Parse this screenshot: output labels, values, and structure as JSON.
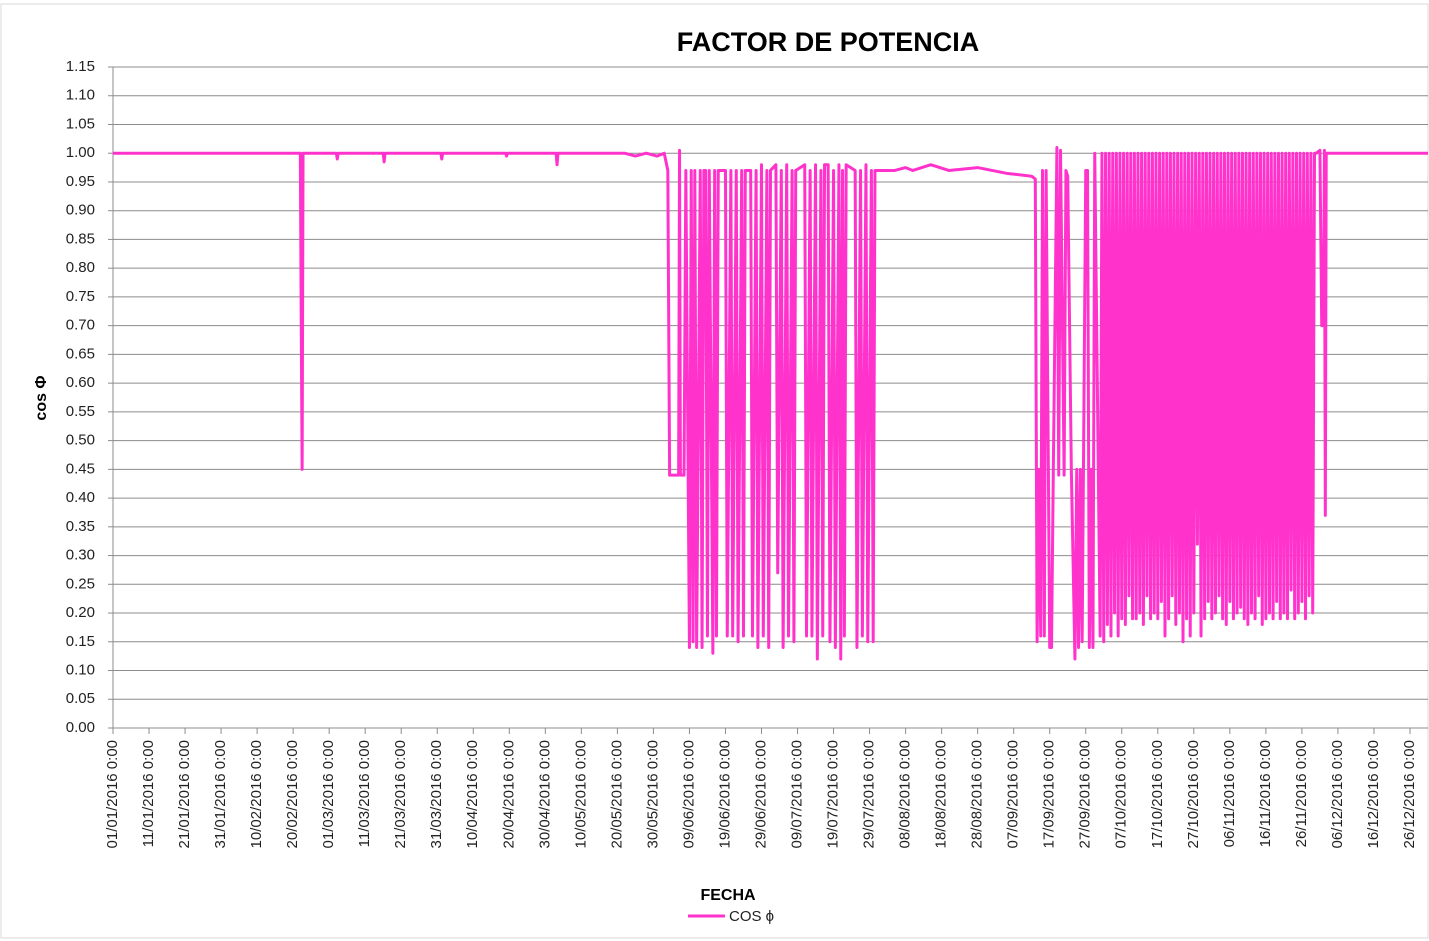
{
  "chart_data": {
    "type": "line",
    "title": "FACTOR DE POTENCIA",
    "xlabel": "FECHA",
    "ylabel": "cos Φ",
    "x": [
      "01/01/2016 0:00",
      "22/02/2016 0:00",
      "22/02/2016 6:00",
      "22/02/2016 12:00",
      "22/02/2016 18:00",
      "03/03/2016 0:00",
      "03/03/2016 6:00",
      "03/03/2016 12:00",
      "16/03/2016 0:00",
      "16/03/2016 6:00",
      "16/03/2016 12:00",
      "01/04/2016 0:00",
      "01/04/2016 6:00",
      "01/04/2016 12:00",
      "19/04/2016 0:00",
      "19/04/2016 6:00",
      "19/04/2016 12:00",
      "03/05/2016 0:00",
      "03/05/2016 6:00",
      "03/05/2016 12:00",
      "22/05/2016 0:00",
      "25/05/2016 0:00",
      "28/05/2016 0:00",
      "31/05/2016 0:00",
      "02/06/2016 0:00",
      "03/06/2016 0:00",
      "03/06/2016 12:00",
      "06/06/2016 0:00",
      "06/06/2016 6:00",
      "06/06/2016 12:00",
      "07/06/2016 12:00",
      "08/06/2016 0:00",
      "09/06/2016 0:00",
      "09/06/2016 12:00",
      "10/06/2016 0:00",
      "10/06/2016 12:00",
      "11/06/2016 0:00",
      "12/06/2016 0:00",
      "12/06/2016 12:00",
      "13/06/2016 0:00",
      "13/06/2016 12:00",
      "14/06/2016 0:00",
      "14/06/2016 12:00",
      "15/06/2016 12:00",
      "16/06/2016 0:00",
      "16/06/2016 12:00",
      "17/06/2016 0:00",
      "19/06/2016 0:00",
      "19/06/2016 12:00",
      "20/06/2016 12:00",
      "21/06/2016 0:00",
      "22/06/2016 0:00",
      "22/06/2016 12:00",
      "23/06/2016 12:00",
      "24/06/2016 0:00",
      "24/06/2016 12:00",
      "26/06/2016 0:00",
      "26/06/2016 12:00",
      "27/06/2016 12:00",
      "28/06/2016 0:00",
      "29/06/2016 0:00",
      "29/06/2016 12:00",
      "30/06/2016 12:00",
      "01/07/2016 0:00",
      "01/07/2016 12:00",
      "03/07/2016 0:00",
      "03/07/2016 12:00",
      "04/07/2016 12:00",
      "05/07/2016 0:00",
      "06/07/2016 0:00",
      "06/07/2016 12:00",
      "07/07/2016 12:00",
      "08/07/2016 0:00",
      "08/07/2016 12:00",
      "11/07/2016 0:00",
      "11/07/2016 12:00",
      "12/07/2016 12:00",
      "13/07/2016 0:00",
      "14/07/2016 0:00",
      "14/07/2016 12:00",
      "15/07/2016 12:00",
      "16/07/2016 0:00",
      "16/07/2016 12:00",
      "17/07/2016 12:00",
      "18/07/2016 0:00",
      "19/07/2016 0:00",
      "19/07/2016 12:00",
      "20/07/2016 12:00",
      "21/07/2016 0:00",
      "21/07/2016 12:00",
      "22/07/2016 0:00",
      "22/07/2016 12:00",
      "25/07/2016 0:00",
      "25/07/2016 12:00",
      "26/07/2016 12:00",
      "27/07/2016 0:00",
      "28/07/2016 0:00",
      "28/07/2016 12:00",
      "29/07/2016 12:00",
      "30/07/2016 0:00",
      "30/07/2016 12:00",
      "05/08/2016 0:00",
      "08/08/2016 0:00",
      "10/08/2016 0:00",
      "15/08/2016 0:00",
      "20/08/2016 0:00",
      "28/08/2016 0:00",
      "05/09/2016 0:00",
      "12/09/2016 0:00",
      "13/09/2016 0:00",
      "13/09/2016 12:00",
      "14/09/2016 0:00",
      "14/09/2016 12:00",
      "15/09/2016 0:00",
      "15/09/2016 12:00",
      "16/09/2016 0:00",
      "17/09/2016 0:00",
      "17/09/2016 12:00",
      "18/09/2016 0:00",
      "19/09/2016 0:00",
      "19/09/2016 12:00",
      "20/09/2016 0:00",
      "21/09/2016 0:00",
      "21/09/2016 12:00",
      "22/09/2016 0:00",
      "23/09/2016 0:00",
      "24/09/2016 0:00",
      "24/09/2016 12:00",
      "25/09/2016 0:00",
      "25/09/2016 12:00",
      "26/09/2016 0:00",
      "27/09/2016 0:00",
      "27/09/2016 12:00",
      "28/09/2016 0:00",
      "28/09/2016 12:00",
      "29/09/2016 0:00",
      "29/09/2016 12:00",
      "01/10/2016 0:00",
      "01/10/2016 12:00",
      "02/10/2016 0:00",
      "02/10/2016 12:00",
      "03/10/2016 0:00",
      "03/10/2016 12:00",
      "04/10/2016 0:00",
      "04/10/2016 12:00",
      "05/10/2016 0:00",
      "05/10/2016 12:00",
      "06/10/2016 0:00",
      "06/10/2016 12:00",
      "07/10/2016 0:00",
      "07/10/2016 12:00",
      "08/10/2016 0:00",
      "08/10/2016 12:00",
      "09/10/2016 0:00",
      "09/10/2016 12:00",
      "10/10/2016 0:00",
      "10/10/2016 12:00",
      "11/10/2016 0:00",
      "11/10/2016 12:00",
      "12/10/2016 0:00",
      "12/10/2016 12:00",
      "13/10/2016 0:00",
      "13/10/2016 12:00",
      "14/10/2016 0:00",
      "14/10/2016 12:00",
      "15/10/2016 0:00",
      "15/10/2016 12:00",
      "16/10/2016 0:00",
      "16/10/2016 12:00",
      "17/10/2016 0:00",
      "17/10/2016 12:00",
      "18/10/2016 0:00",
      "18/10/2016 12:00",
      "19/10/2016 0:00",
      "19/10/2016 12:00",
      "20/10/2016 0:00",
      "20/10/2016 12:00",
      "21/10/2016 0:00",
      "21/10/2016 12:00",
      "22/10/2016 0:00",
      "22/10/2016 12:00",
      "23/10/2016 0:00",
      "23/10/2016 12:00",
      "24/10/2016 0:00",
      "24/10/2016 12:00",
      "25/10/2016 0:00",
      "25/10/2016 12:00",
      "26/10/2016 0:00",
      "26/10/2016 12:00",
      "27/10/2016 0:00",
      "27/10/2016 12:00",
      "28/10/2016 0:00",
      "28/10/2016 12:00",
      "29/10/2016 0:00",
      "29/10/2016 12:00",
      "30/10/2016 0:00",
      "30/10/2016 12:00",
      "31/10/2016 0:00",
      "31/10/2016 12:00",
      "01/11/2016 0:00",
      "01/11/2016 12:00",
      "02/11/2016 0:00",
      "02/11/2016 12:00",
      "03/11/2016 0:00",
      "03/11/2016 12:00",
      "04/11/2016 0:00",
      "04/11/2016 12:00",
      "05/11/2016 0:00",
      "05/11/2016 12:00",
      "06/11/2016 0:00",
      "06/11/2016 12:00",
      "07/11/2016 0:00",
      "07/11/2016 12:00",
      "08/11/2016 0:00",
      "08/11/2016 12:00",
      "09/11/2016 0:00",
      "09/11/2016 12:00",
      "10/11/2016 0:00",
      "10/11/2016 12:00",
      "11/11/2016 0:00",
      "11/11/2016 12:00",
      "12/11/2016 0:00",
      "12/11/2016 12:00",
      "13/11/2016 0:00",
      "13/11/2016 12:00",
      "14/11/2016 0:00",
      "14/11/2016 12:00",
      "15/11/2016 0:00",
      "15/11/2016 12:00",
      "16/11/2016 0:00",
      "16/11/2016 12:00",
      "17/11/2016 0:00",
      "17/11/2016 12:00",
      "18/11/2016 0:00",
      "18/11/2016 12:00",
      "19/11/2016 0:00",
      "19/11/2016 12:00",
      "20/11/2016 0:00",
      "20/11/2016 12:00",
      "21/11/2016 0:00",
      "21/11/2016 12:00",
      "22/11/2016 0:00",
      "22/11/2016 12:00",
      "23/11/2016 0:00",
      "23/11/2016 12:00",
      "24/11/2016 0:00",
      "24/11/2016 12:00",
      "25/11/2016 0:00",
      "25/11/2016 12:00",
      "26/11/2016 0:00",
      "26/11/2016 12:00",
      "27/11/2016 0:00",
      "27/11/2016 12:00",
      "28/11/2016 0:00",
      "28/11/2016 12:00",
      "29/11/2016 0:00",
      "29/11/2016 12:00",
      "30/11/2016 0:00",
      "01/12/2016 0:00",
      "01/12/2016 12:00",
      "02/12/2016 0:00",
      "02/12/2016 6:00",
      "02/12/2016 12:00",
      "02/12/2016 18:00",
      "31/12/2016 0:00"
    ],
    "series": [
      {
        "name": "COS ϕ",
        "color": "#ff33cc",
        "values": [
          1,
          1,
          0.7,
          0.45,
          1,
          1,
          0.99,
          1,
          1,
          0.985,
          1,
          1,
          0.99,
          1,
          1,
          0.995,
          1,
          1,
          0.98,
          1,
          1,
          0.995,
          1,
          0.995,
          1,
          0.97,
          0.44,
          0.44,
          1.005,
          0.44,
          0.44,
          0.97,
          0.14,
          0.97,
          0.15,
          0.97,
          0.14,
          0.97,
          0.14,
          0.97,
          0.97,
          0.16,
          0.97,
          0.13,
          0.97,
          0.16,
          0.97,
          0.97,
          0.16,
          0.97,
          0.16,
          0.97,
          0.15,
          0.97,
          0.16,
          0.97,
          0.97,
          0.16,
          0.97,
          0.14,
          0.98,
          0.16,
          0.97,
          0.14,
          0.97,
          0.98,
          0.27,
          0.97,
          0.14,
          0.98,
          0.16,
          0.97,
          0.15,
          0.97,
          0.98,
          0.16,
          0.97,
          0.16,
          0.98,
          0.12,
          0.97,
          0.16,
          0.98,
          0.98,
          0.15,
          0.97,
          0.14,
          0.98,
          0.12,
          0.97,
          0.16,
          0.98,
          0.97,
          0.14,
          0.97,
          0.16,
          0.98,
          0.15,
          0.97,
          0.15,
          0.97,
          0.97,
          0.975,
          0.97,
          0.98,
          0.97,
          0.975,
          0.965,
          0.96,
          0.955,
          0.15,
          0.45,
          0.16,
          0.97,
          0.16,
          0.97,
          0.14,
          0.14,
          0.45,
          1.01,
          0.44,
          1.005,
          0.44,
          0.97,
          0.96,
          0.45,
          0.12,
          0.45,
          0.14,
          0.45,
          0.15,
          0.97,
          0.97,
          0.14,
          0.45,
          0.14,
          1,
          0.16,
          1,
          0.15,
          1,
          0.18,
          1,
          0.16,
          1,
          0.2,
          1,
          0.16,
          1,
          0.19,
          1,
          0.18,
          1,
          0.23,
          1,
          0.19,
          1,
          0.19,
          1,
          0.2,
          1,
          0.18,
          1,
          0.23,
          1,
          0.19,
          1,
          0.2,
          1,
          0.19,
          1,
          0.22,
          1,
          0.16,
          1,
          0.19,
          1,
          0.23,
          1,
          0.18,
          1,
          0.2,
          1,
          0.15,
          1,
          0.19,
          1,
          0.16,
          1,
          0.2,
          1,
          0.32,
          1,
          0.16,
          1,
          0.19,
          1,
          0.22,
          1,
          0.19,
          1,
          0.2,
          1,
          0.23,
          1,
          0.19,
          1,
          0.18,
          1,
          0.22,
          1,
          0.19,
          1,
          0.2,
          1,
          0.21,
          1,
          0.19,
          1,
          0.18,
          1,
          0.2,
          1,
          0.19,
          1,
          0.23,
          1,
          0.18,
          1,
          0.19,
          1,
          0.2,
          1,
          0.19,
          1,
          0.22,
          1,
          0.19,
          1,
          0.2,
          1,
          0.19,
          1,
          0.24,
          1,
          0.19,
          1,
          0.2,
          1,
          0.22,
          1,
          0.19,
          1,
          0.23,
          1,
          0.2,
          1,
          1,
          1.005,
          0.7,
          0.7,
          1.005,
          0.37,
          1,
          1
        ]
      }
    ],
    "xlim": [
      "01/01/2016 0:00",
      "31/12/2016 0:00"
    ],
    "xticks": [
      "01/01/2016 0:00",
      "11/01/2016 0:00",
      "21/01/2016 0:00",
      "31/01/2016 0:00",
      "10/02/2016 0:00",
      "20/02/2016 0:00",
      "01/03/2016 0:00",
      "11/03/2016 0:00",
      "21/03/2016 0:00",
      "31/03/2016 0:00",
      "10/04/2016 0:00",
      "20/04/2016 0:00",
      "30/04/2016 0:00",
      "10/05/2016 0:00",
      "20/05/2016 0:00",
      "30/05/2016 0:00",
      "09/06/2016 0:00",
      "19/06/2016 0:00",
      "29/06/2016 0:00",
      "09/07/2016 0:00",
      "19/07/2016 0:00",
      "29/07/2016 0:00",
      "08/08/2016 0:00",
      "18/08/2016 0:00",
      "28/08/2016 0:00",
      "07/09/2016 0:00",
      "17/09/2016 0:00",
      "27/09/2016 0:00",
      "07/10/2016 0:00",
      "17/10/2016 0:00",
      "27/10/2016 0:00",
      "06/11/2016 0:00",
      "16/11/2016 0:00",
      "26/11/2016 0:00",
      "06/12/2016 0:00",
      "16/12/2016 0:00",
      "26/12/2016 0:00"
    ],
    "ylim": [
      0,
      1.15
    ],
    "yticks": [
      {
        "value": 0,
        "label": "0.00"
      },
      0.05,
      {
        "value": 0.1,
        "label": "0.10"
      },
      0.15,
      {
        "value": 0.2,
        "label": "0.20"
      },
      0.25,
      {
        "value": 0.3,
        "label": "0.30"
      },
      0.35,
      {
        "value": 0.4,
        "label": "0.40"
      },
      0.45,
      {
        "value": 0.5,
        "label": "0.50"
      },
      0.55,
      {
        "value": 0.6,
        "label": "0.60"
      },
      0.65,
      {
        "value": 0.7,
        "label": "0.70"
      },
      0.75,
      {
        "value": 0.8,
        "label": "0.80"
      },
      0.85,
      {
        "value": 0.9,
        "label": "0.90"
      },
      0.95,
      {
        "value": 1,
        "label": "1.00"
      },
      1.05,
      {
        "value": 1.1,
        "label": "1.10"
      },
      1.15
    ],
    "grid": true,
    "legend": "bottom"
  }
}
